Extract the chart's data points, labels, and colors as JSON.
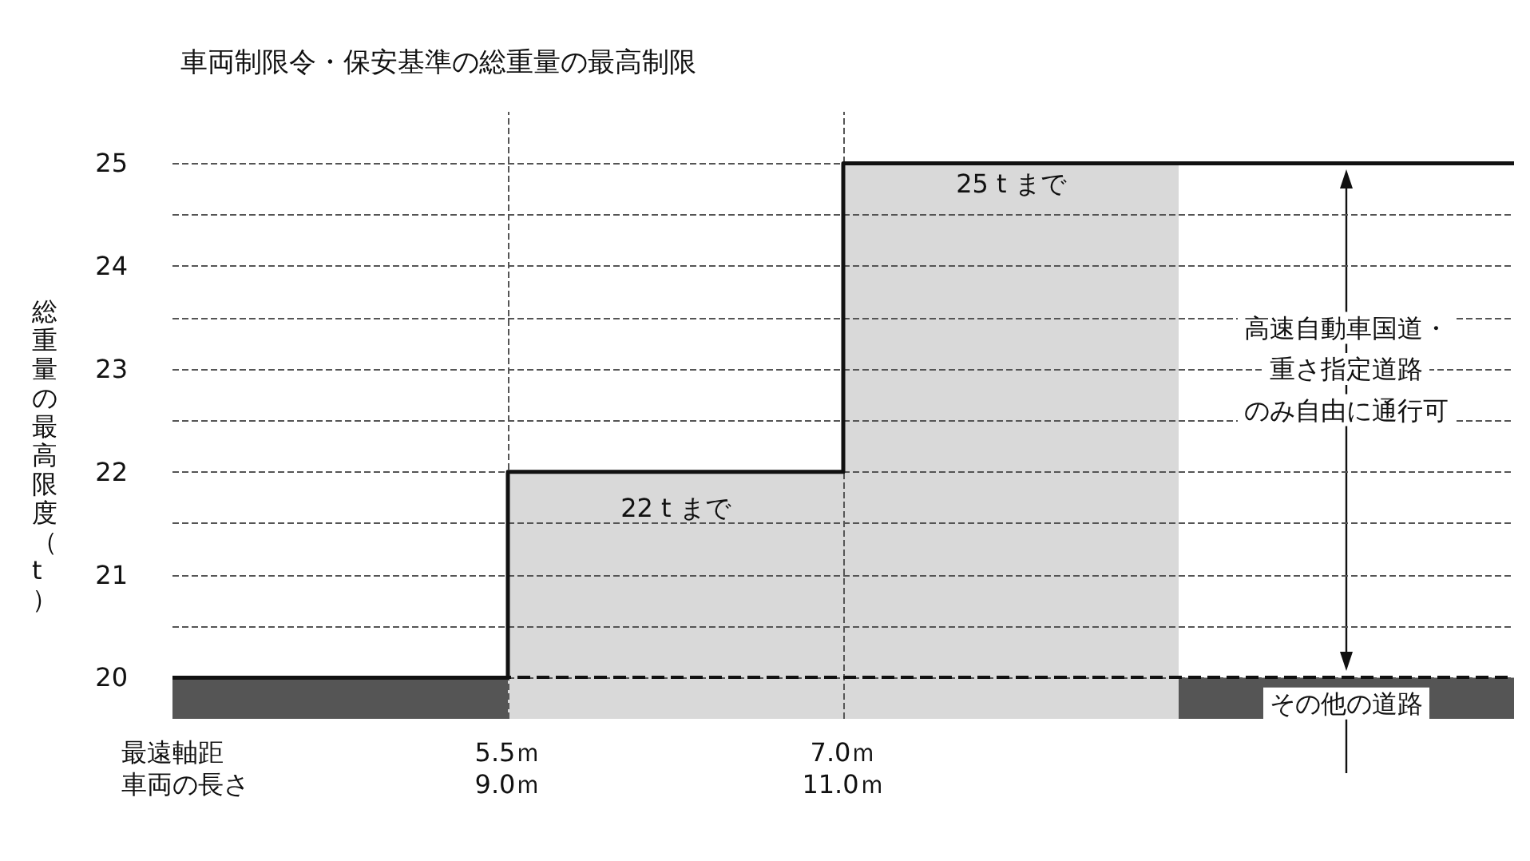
{
  "chart_data": {
    "type": "step",
    "title": "車両制限令・保安基準の総重量の最高制限",
    "ylabel": "総重量の最高限度（t）",
    "xlabel": "最遠軸距",
    "x2label": "車両の長さ",
    "xlim": [
      4,
      10
    ],
    "xticks": [
      {
        "value": 5.5,
        "label": "5.5ｍ"
      },
      {
        "value": 7,
        "label": "7.0ｍ"
      }
    ],
    "x2lim": [
      7,
      15
    ],
    "x2ticks": [
      {
        "value": 9,
        "label": "9.0ｍ"
      },
      {
        "value": 11,
        "label": "11.0ｍ"
      }
    ],
    "ylim": [
      19.6,
      25.5
    ],
    "yticks": [
      20,
      {
        "value": 20.5,
        "label": null
      },
      21,
      {
        "value": 21.5,
        "label": null
      },
      22,
      {
        "value": 22.5,
        "label": null
      },
      23,
      {
        "value": 23.5,
        "label": null
      },
      24,
      {
        "value": 24.5,
        "label": null
      },
      25
    ],
    "grid": true,
    "line_style": "solid",
    "marker": "none",
    "series": [
      {
        "type": "area",
        "color": "#d9d9d9",
        "x": [
          5.5,
          7,
          7,
          8.5
        ],
        "values": [
          22,
          22,
          25,
          25
        ]
      },
      {
        "color": "#111111",
        "x": [
          4,
          5.5,
          7,
          10
        ],
        "values": [
          20,
          22,
          25,
          25
        ]
      }
    ],
    "bands": [
      {
        "axis": "y",
        "from": 19.6,
        "to": 20,
        "color": "#555555"
      }
    ],
    "ref_lines": [
      {
        "axis": "y",
        "value": 20,
        "color": "#111111",
        "line_style": "dashed"
      }
    ],
    "annotations": [
      "25 t まで",
      "22 t まで",
      "高速自動車国道・",
      "重さ指定道路",
      "のみ自由に通行可",
      "その他の道路"
    ]
  }
}
